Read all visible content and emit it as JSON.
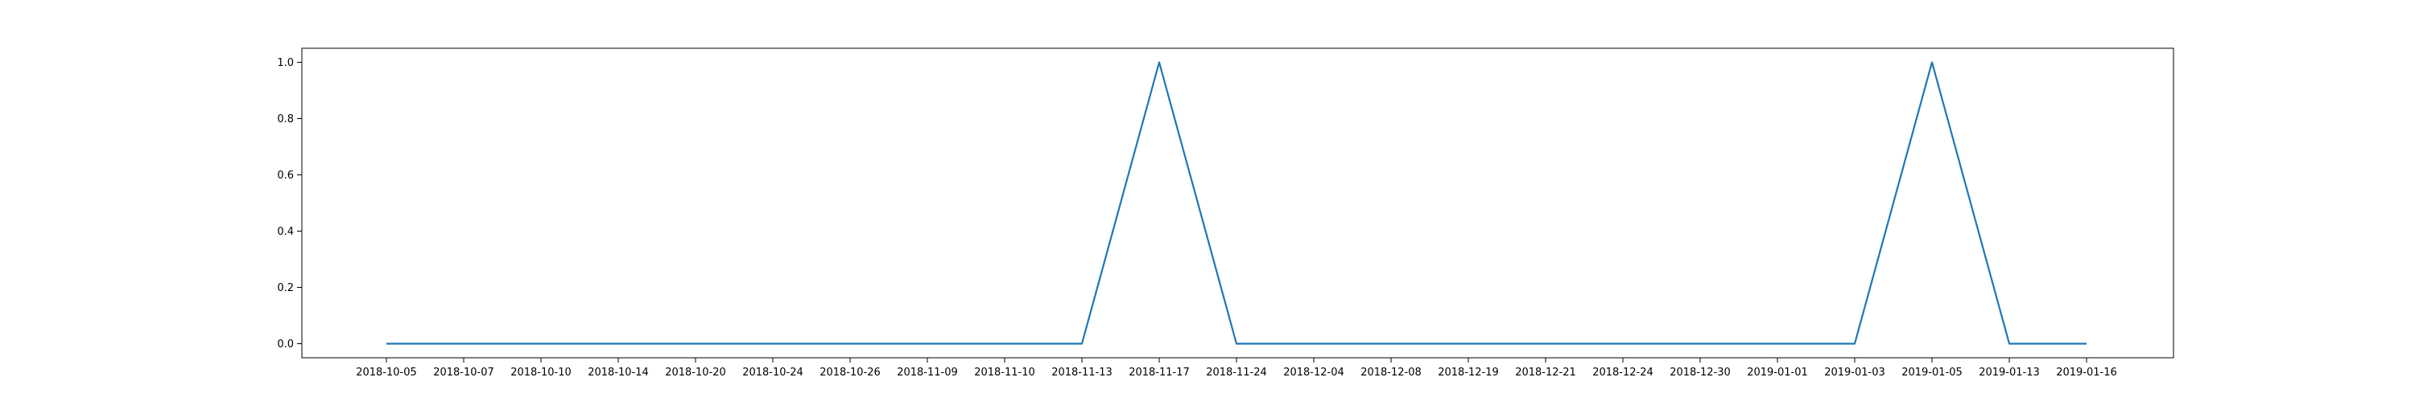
{
  "chart_data": {
    "type": "line",
    "title": "",
    "xlabel": "",
    "ylabel": "",
    "categories": [
      "2018-10-05",
      "2018-10-07",
      "2018-10-10",
      "2018-10-14",
      "2018-10-20",
      "2018-10-24",
      "2018-10-26",
      "2018-11-09",
      "2018-11-10",
      "2018-11-13",
      "2018-11-17",
      "2018-11-24",
      "2018-12-04",
      "2018-12-08",
      "2018-12-19",
      "2018-12-21",
      "2018-12-24",
      "2018-12-30",
      "2019-01-01",
      "2019-01-03",
      "2019-01-05",
      "2019-01-13",
      "2019-01-16"
    ],
    "series": [
      {
        "values": [
          0,
          0,
          0,
          0,
          0,
          0,
          0,
          0,
          0,
          0,
          1,
          0,
          0,
          0,
          0,
          0,
          0,
          0,
          0,
          0,
          1,
          0,
          0
        ]
      }
    ],
    "ylim": [
      -0.05,
      1.05
    ],
    "yticks": [
      0.0,
      0.2,
      0.4,
      0.6,
      0.8,
      1.0
    ],
    "ytick_labels": [
      "0.0",
      "0.2",
      "0.4",
      "0.6",
      "0.8",
      "1.0"
    ],
    "grid": false,
    "legend": "none",
    "line_color": "#1f77b4"
  }
}
